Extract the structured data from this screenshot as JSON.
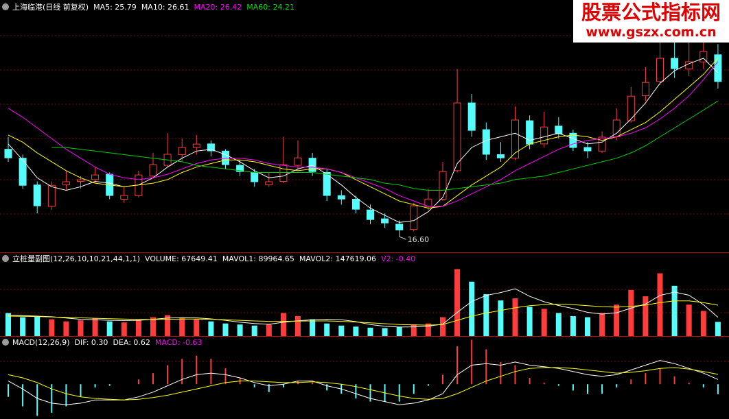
{
  "chart_data": [
    {
      "type": "candlestick",
      "title": "上海临港(日线 前复权)",
      "up_color": "#ff3c3c",
      "down_color": "#54fcfc",
      "ylim": [
        15.72,
        29.87
      ],
      "open": [
        21.5,
        21.0,
        19.5,
        18.3,
        19.5,
        19.7,
        19.8,
        20.1,
        18.7,
        18.9,
        20.0,
        20.6,
        21.2,
        21.6,
        21.8,
        21.4,
        20.6,
        20.2,
        19.5,
        19.7,
        20.6,
        21.0,
        20.2,
        18.9,
        18.7,
        18.1,
        17.6,
        17.3,
        17.0,
        18.3,
        18.7,
        20.3,
        24.1,
        22.6,
        21.2,
        21.0,
        23.1,
        21.8,
        22.8,
        22.4,
        21.6,
        21.4,
        22.2,
        23.1,
        24.5,
        25.3,
        26.6,
        26.0,
        26.4,
        26.8
      ],
      "high": [
        22.2,
        21.2,
        19.7,
        19.7,
        20.3,
        20.0,
        20.5,
        20.2,
        19.4,
        20.3,
        21.3,
        22.4,
        22.1,
        22.3,
        22.0,
        21.5,
        20.9,
        20.4,
        20.2,
        22.2,
        22.0,
        21.3,
        20.4,
        19.2,
        18.9,
        18.4,
        17.9,
        17.5,
        18.5,
        19.3,
        20.8,
        26.0,
        24.6,
        23.0,
        21.9,
        23.9,
        23.4,
        23.6,
        23.3,
        22.6,
        21.9,
        22.5,
        23.8,
        25.0,
        26.1,
        28.4,
        28.0,
        27.8,
        28.5,
        27.4
      ],
      "low": [
        20.8,
        19.3,
        17.9,
        18.1,
        19.2,
        19.3,
        19.6,
        18.7,
        18.5,
        18.8,
        19.9,
        20.5,
        20.8,
        21.2,
        21.1,
        20.4,
        20.0,
        19.4,
        19.4,
        19.6,
        20.3,
        20.0,
        18.6,
        18.4,
        17.9,
        17.3,
        17.1,
        16.6,
        16.9,
        18.1,
        18.6,
        20.2,
        22.2,
        20.9,
        20.8,
        20.9,
        21.5,
        21.6,
        22.1,
        21.4,
        21.0,
        21.3,
        22.0,
        23.0,
        24.2,
        25.1,
        25.5,
        25.6,
        26.0,
        24.9
      ],
      "close": [
        21.02,
        19.48,
        18.33,
        19.48,
        19.68,
        19.79,
        20.06,
        18.91,
        18.91,
        20.06,
        20.64,
        21.22,
        21.6,
        21.79,
        21.41,
        20.64,
        20.25,
        19.68,
        19.68,
        20.64,
        21.02,
        20.25,
        18.91,
        18.71,
        18.14,
        17.56,
        17.37,
        16.98,
        18.33,
        18.71,
        20.25,
        24.1,
        22.56,
        21.22,
        21.02,
        23.14,
        21.79,
        22.75,
        22.37,
        21.6,
        21.41,
        22.18,
        23.14,
        24.48,
        25.25,
        26.6,
        26.02,
        26.41,
        26.98,
        25.3
      ],
      "annotation": {
        "value": 16.6,
        "label": "16.60"
      },
      "lines": [
        {
          "label": "MA5: 25.79",
          "color": "#ffffff",
          "label_color": "#ffffff",
          "values": [
            21.8,
            20.9,
            19.9,
            19.4,
            19.2,
            19.4,
            19.7,
            19.6,
            19.4,
            19.5,
            19.9,
            20.5,
            21.0,
            21.4,
            21.5,
            21.2,
            20.8,
            20.3,
            19.9,
            20.0,
            20.4,
            20.6,
            20.1,
            19.5,
            18.8,
            18.2,
            17.8,
            17.4,
            17.5,
            18.0,
            18.8,
            20.7,
            21.6,
            22.0,
            22.2,
            22.4,
            22.0,
            22.2,
            22.4,
            22.1,
            21.8,
            21.9,
            22.4,
            23.2,
            24.1,
            25.2,
            25.9,
            26.3,
            26.6,
            25.79
          ]
        },
        {
          "label": "MA10: 26.61",
          "color": "#ffff00",
          "label_color": "#ffffff",
          "values": [
            22.3,
            21.9,
            21.3,
            20.8,
            20.3,
            19.9,
            19.6,
            19.5,
            19.4,
            19.5,
            19.6,
            19.8,
            20.2,
            20.5,
            20.7,
            20.9,
            20.9,
            20.8,
            20.6,
            20.4,
            20.3,
            20.4,
            20.4,
            20.2,
            19.8,
            19.4,
            19.0,
            18.6,
            18.4,
            18.2,
            18.3,
            18.9,
            19.5,
            20.0,
            20.5,
            21.3,
            21.8,
            22.0,
            22.2,
            22.3,
            22.2,
            22.0,
            22.2,
            22.6,
            23.0,
            23.6,
            24.3,
            25.0,
            25.7,
            26.61
          ]
        },
        {
          "label": "MA20: 26.42",
          "color": "#ff00ff",
          "label_color": "#ff00ff",
          "values": [
            23.8,
            23.3,
            22.7,
            22.1,
            21.5,
            21.0,
            20.5,
            20.1,
            19.9,
            19.8,
            19.9,
            20.1,
            20.4,
            20.7,
            20.9,
            21.0,
            21.0,
            20.9,
            20.7,
            20.6,
            20.5,
            20.5,
            20.4,
            20.2,
            19.9,
            19.6,
            19.3,
            18.9,
            18.6,
            18.3,
            18.3,
            18.6,
            19.0,
            19.4,
            19.8,
            20.3,
            20.7,
            21.1,
            21.5,
            21.8,
            22.0,
            22.1,
            22.2,
            22.4,
            22.7,
            23.2,
            23.8,
            24.5,
            25.4,
            26.42
          ]
        },
        {
          "label": "MA60: 24.21",
          "color": "#00d000",
          "label_color": "#00e000",
          "values": [
            null,
            null,
            null,
            21.6,
            21.6,
            21.5,
            21.4,
            21.3,
            21.2,
            21.1,
            21.0,
            20.9,
            20.8,
            20.6,
            20.5,
            20.4,
            20.3,
            20.2,
            20.2,
            20.2,
            20.2,
            20.2,
            20.1,
            20.0,
            19.9,
            19.8,
            19.6,
            19.5,
            19.3,
            19.2,
            19.2,
            19.3,
            19.4,
            19.5,
            19.6,
            19.8,
            19.9,
            20.0,
            20.2,
            20.4,
            20.6,
            20.8,
            21.0,
            21.3,
            21.7,
            22.2,
            22.7,
            23.2,
            23.7,
            24.21
          ]
        }
      ]
    },
    {
      "type": "bar",
      "title": "立桩量副图(12,26,10,10,21,44,1,1)",
      "ylim": [
        0,
        400000
      ],
      "volume_label": "VOLUME: 67649.41",
      "values": [
        110000,
        90000,
        95000,
        80000,
        70000,
        75000,
        85000,
        70000,
        65000,
        80000,
        90000,
        100000,
        85000,
        80000,
        70000,
        60000,
        55000,
        50000,
        55000,
        110000,
        95000,
        80000,
        60000,
        50000,
        45000,
        40000,
        38000,
        42000,
        55000,
        60000,
        90000,
        320000,
        260000,
        200000,
        170000,
        180000,
        140000,
        130000,
        110000,
        95000,
        90000,
        110000,
        150000,
        220000,
        190000,
        300000,
        240000,
        150000,
        120000,
        67649.41
      ],
      "lines": [
        {
          "label": "MAVOL1: 89964.65",
          "color": "#ffffff",
          "label_color": "#ffffff",
          "values": [
            100000,
            98000,
            95000,
            92000,
            86000,
            80000,
            78000,
            75000,
            74000,
            75000,
            80000,
            86000,
            88000,
            87000,
            82000,
            75000,
            66000,
            60000,
            56000,
            66000,
            73000,
            78000,
            80000,
            78000,
            69000,
            55000,
            47000,
            43000,
            44000,
            47000,
            57000,
            113000,
            165000,
            194000,
            208000,
            226000,
            190000,
            164000,
            146000,
            131000,
            113000,
            105000,
            111000,
            133000,
            153000,
            194000,
            210000,
            195000,
            150000,
            89964.65
          ]
        },
        {
          "label": "MAVOL2: 147619.06",
          "color": "#ffff00",
          "label_color": "#ffffff",
          "values": [
            95000,
            94000,
            93000,
            91000,
            89000,
            87000,
            85000,
            83000,
            81000,
            79000,
            79000,
            80000,
            81000,
            81000,
            80000,
            78000,
            75000,
            72000,
            70000,
            70000,
            71000,
            72000,
            72000,
            70000,
            67000,
            63000,
            59000,
            55000,
            53000,
            52000,
            55000,
            75000,
            95000,
            110000,
            122000,
            135000,
            145000,
            150000,
            152000,
            150000,
            145000,
            140000,
            138000,
            142000,
            148000,
            160000,
            168000,
            168000,
            160000,
            147619.06
          ]
        }
      ],
      "extra_label": {
        "label": "V2: -0.40",
        "color": "#ff00ff"
      }
    },
    {
      "type": "macd",
      "title": "MACD(12,26,9)",
      "ylim": [
        -2.2,
        3.0
      ],
      "up_color": "#ff3c3c",
      "down_color": "#54fcfc",
      "lines": [
        {
          "label": "DIF: 0.30",
          "color": "#ffffff",
          "label_color": "#ffffff",
          "values": [
            0.2,
            -0.3,
            -0.9,
            -1.2,
            -1.3,
            -1.2,
            -1.0,
            -1.0,
            -1.0,
            -0.8,
            -0.5,
            -0.1,
            0.3,
            0.6,
            0.7,
            0.6,
            0.4,
            0.1,
            -0.1,
            0.0,
            0.2,
            0.2,
            -0.1,
            -0.3,
            -0.6,
            -0.9,
            -1.1,
            -1.3,
            -1.2,
            -1.0,
            -0.6,
            0.6,
            1.2,
            1.3,
            1.2,
            1.4,
            1.2,
            1.1,
            1.0,
            0.8,
            0.6,
            0.5,
            0.6,
            0.9,
            1.2,
            1.5,
            1.3,
            1.0,
            0.7,
            0.3
          ]
        },
        {
          "label": "DEA: 0.62",
          "color": "#ffff00",
          "label_color": "#ffffff",
          "values": [
            0.6,
            0.4,
            0.1,
            -0.3,
            -0.6,
            -0.8,
            -0.9,
            -0.95,
            -1.0,
            -0.95,
            -0.85,
            -0.7,
            -0.5,
            -0.3,
            -0.1,
            0.1,
            0.2,
            0.2,
            0.15,
            0.1,
            0.1,
            0.15,
            0.1,
            0.0,
            -0.15,
            -0.35,
            -0.55,
            -0.75,
            -0.9,
            -0.95,
            -0.9,
            -0.6,
            -0.2,
            0.2,
            0.5,
            0.8,
            1.0,
            1.05,
            1.05,
            1.0,
            0.9,
            0.8,
            0.7,
            0.75,
            0.85,
            1.0,
            1.05,
            0.95,
            0.8,
            0.62
          ]
        }
      ],
      "histogram": {
        "label": "MACD: -0.63",
        "label_color": "#ff00ff",
        "values": [
          -0.8,
          -1.4,
          -2.0,
          -1.8,
          -1.4,
          -0.8,
          -0.2,
          -0.1,
          0.0,
          0.3,
          0.7,
          1.2,
          1.6,
          1.8,
          1.6,
          1.0,
          0.4,
          -0.2,
          -0.5,
          -0.2,
          0.2,
          0.1,
          -0.4,
          -0.6,
          -0.9,
          -1.1,
          -1.1,
          -1.1,
          -0.6,
          -0.1,
          0.6,
          2.4,
          2.8,
          2.2,
          1.4,
          1.2,
          0.4,
          0.1,
          -0.1,
          -0.4,
          -0.6,
          -0.6,
          -0.2,
          0.3,
          0.7,
          1.0,
          0.5,
          0.1,
          -0.2,
          -0.63
        ]
      }
    }
  ],
  "watermark": {
    "title": "股票公式指标网",
    "url": "www.gszx.com.cn"
  }
}
